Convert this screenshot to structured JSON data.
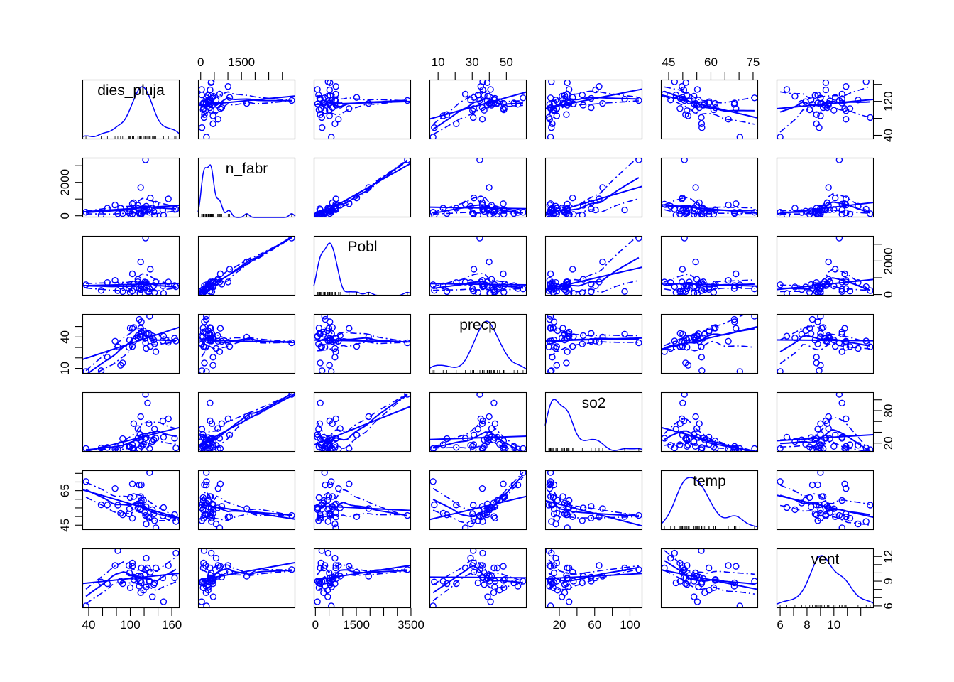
{
  "figure": {
    "background": "#ffffff",
    "line_color": "#0000ff",
    "point_color": "#0000ff",
    "text_color": "#000000"
  },
  "chart_data": {
    "type": "scatter",
    "subtype": "scatterplot-matrix",
    "diagonal": "density-with-rug",
    "title": "",
    "variables": [
      "dies_pluja",
      "n_fabr",
      "Pobl",
      "precp",
      "so2",
      "temp",
      "vent"
    ],
    "observations": [
      [
        135,
        44,
        116,
        33.36,
        46,
        47.6,
        8.8
      ],
      [
        58,
        46,
        244,
        7.77,
        11,
        56.8,
        8.9
      ],
      [
        115,
        368,
        497,
        48.34,
        24,
        61.5,
        9.1
      ],
      [
        111,
        625,
        905,
        41.31,
        47,
        55.0,
        9.6
      ],
      [
        166,
        391,
        463,
        36.11,
        11,
        47.1,
        12.4
      ],
      [
        148,
        35,
        71,
        40.75,
        31,
        55.2,
        6.5
      ],
      [
        122,
        3344,
        3369,
        34.44,
        110,
        50.6,
        10.4
      ],
      [
        132,
        462,
        453,
        39.04,
        23,
        54.0,
        7.1
      ],
      [
        155,
        1007,
        751,
        34.99,
        65,
        49.7,
        10.9
      ],
      [
        134,
        266,
        540,
        37.01,
        26,
        51.5,
        8.6
      ],
      [
        78,
        641,
        844,
        35.94,
        9,
        66.2,
        10.9
      ],
      [
        86,
        454,
        515,
        12.95,
        17,
        51.9,
        9.0
      ],
      [
        103,
        104,
        201,
        30.85,
        17,
        49.0,
        11.2
      ],
      [
        129,
        1064,
        1513,
        30.96,
        35,
        49.9,
        10.1
      ],
      [
        127,
        412,
        158,
        43.37,
        56,
        49.1,
        9.0
      ],
      [
        103,
        721,
        1233,
        48.19,
        10,
        68.9,
        10.8
      ],
      [
        121,
        361,
        746,
        38.74,
        28,
        52.3,
        9.7
      ],
      [
        116,
        136,
        529,
        54.47,
        14,
        68.4,
        8.8
      ],
      [
        99,
        381,
        507,
        37.0,
        14,
        54.5,
        10.0
      ],
      [
        100,
        91,
        132,
        48.52,
        13,
        61.0,
        8.2
      ],
      [
        123,
        291,
        593,
        43.11,
        30,
        55.6,
        8.3
      ],
      [
        105,
        337,
        624,
        49.1,
        10,
        61.6,
        9.2
      ],
      [
        128,
        207,
        335,
        59.8,
        10,
        75.5,
        9.0
      ],
      [
        123,
        569,
        717,
        29.07,
        16,
        45.7,
        11.8
      ],
      [
        137,
        699,
        744,
        25.94,
        29,
        43.5,
        10.6
      ],
      [
        119,
        275,
        448,
        46.0,
        18,
        59.4,
        7.9
      ],
      [
        113,
        204,
        361,
        56.77,
        9,
        68.3,
        8.4
      ],
      [
        116,
        96,
        308,
        44.68,
        31,
        59.3,
        10.6
      ],
      [
        98,
        181,
        347,
        30.18,
        14,
        51.5,
        10.9
      ],
      [
        115,
        1692,
        1950,
        39.93,
        69,
        54.6,
        9.6
      ],
      [
        36,
        213,
        582,
        7.05,
        10,
        70.3,
        6.0
      ],
      [
        147,
        347,
        520,
        36.22,
        61,
        50.4,
        9.4
      ],
      [
        125,
        343,
        179,
        42.75,
        94,
        50.0,
        10.6
      ],
      [
        115,
        197,
        299,
        42.59,
        26,
        57.8,
        7.6
      ],
      [
        89,
        137,
        176,
        15.17,
        28,
        51.0,
        8.7
      ],
      [
        67,
        453,
        716,
        20.66,
        12,
        56.7,
        8.7
      ],
      [
        164,
        379,
        531,
        38.79,
        29,
        51.1,
        9.4
      ],
      [
        105,
        775,
        622,
        35.89,
        56,
        55.9,
        9.5
      ],
      [
        111,
        434,
        757,
        38.89,
        29,
        57.3,
        9.3
      ],
      [
        82,
        125,
        232,
        30.58,
        8,
        56.6,
        12.7
      ],
      [
        114,
        80,
        80,
        40.25,
        36,
        54.0,
        9.0
      ]
    ],
    "axes": {
      "top": [
        {
          "col": 1,
          "var": "n_fabr",
          "ticks": [
            0,
            500,
            1000,
            1500,
            2000,
            2500,
            3000
          ],
          "labels": [
            "0",
            "1500"
          ]
        },
        {
          "col": 3,
          "var": "precp",
          "ticks": [
            10,
            20,
            30,
            40,
            50
          ],
          "labels": [
            "10",
            "30",
            "50"
          ]
        },
        {
          "col": 5,
          "var": "temp",
          "ticks": [
            45,
            50,
            55,
            60,
            65,
            70,
            75
          ],
          "labels": [
            "45",
            "60",
            "75"
          ]
        }
      ],
      "bottom": [
        {
          "col": 0,
          "var": "dies_pluja",
          "ticks": [
            40,
            60,
            80,
            100,
            120,
            140,
            160
          ],
          "labels": [
            "40",
            "100",
            "160"
          ]
        },
        {
          "col": 2,
          "var": "Pobl",
          "ticks": [
            0,
            500,
            1000,
            1500,
            2000,
            2500,
            3000,
            3500
          ],
          "labels": [
            "0",
            "1500",
            "3500"
          ]
        },
        {
          "col": 4,
          "var": "so2",
          "ticks": [
            20,
            40,
            60,
            80,
            100
          ],
          "labels": [
            "20",
            "60",
            "100"
          ]
        },
        {
          "col": 6,
          "var": "vent",
          "ticks": [
            6,
            7,
            8,
            9,
            10,
            11,
            12
          ],
          "labels": [
            "6",
            "8",
            "10"
          ]
        }
      ],
      "left": [
        {
          "row": 1,
          "var": "n_fabr",
          "ticks": [
            0,
            1000,
            2000,
            3000
          ],
          "labels": [
            "0",
            "2000"
          ]
        },
        {
          "row": 3,
          "var": "precp",
          "ticks": [
            10,
            20,
            30,
            40,
            50
          ],
          "labels": [
            "10",
            "40"
          ]
        },
        {
          "row": 5,
          "var": "temp",
          "ticks": [
            45,
            50,
            55,
            60,
            65,
            70,
            75
          ],
          "labels": [
            "45",
            "65"
          ]
        }
      ],
      "right": [
        {
          "row": 0,
          "var": "dies_pluja",
          "ticks": [
            40,
            80,
            120,
            160
          ],
          "labels": [
            "40",
            "120"
          ]
        },
        {
          "row": 2,
          "var": "Pobl",
          "ticks": [
            0,
            1000,
            2000,
            3000
          ],
          "labels": [
            "0",
            "2000"
          ]
        },
        {
          "row": 4,
          "var": "so2",
          "ticks": [
            20,
            40,
            60,
            80,
            100
          ],
          "labels": [
            "20",
            "80"
          ]
        },
        {
          "row": 6,
          "var": "vent",
          "ticks": [
            6,
            7,
            8,
            9,
            10,
            11,
            12
          ],
          "labels": [
            "6",
            "9",
            "12"
          ]
        }
      ]
    },
    "legend": null,
    "grid": false,
    "fit_lines": [
      "linear-regression-solid",
      "loess-smooth-solid",
      "spread-dashdot-upper",
      "spread-dashdot-lower"
    ]
  }
}
